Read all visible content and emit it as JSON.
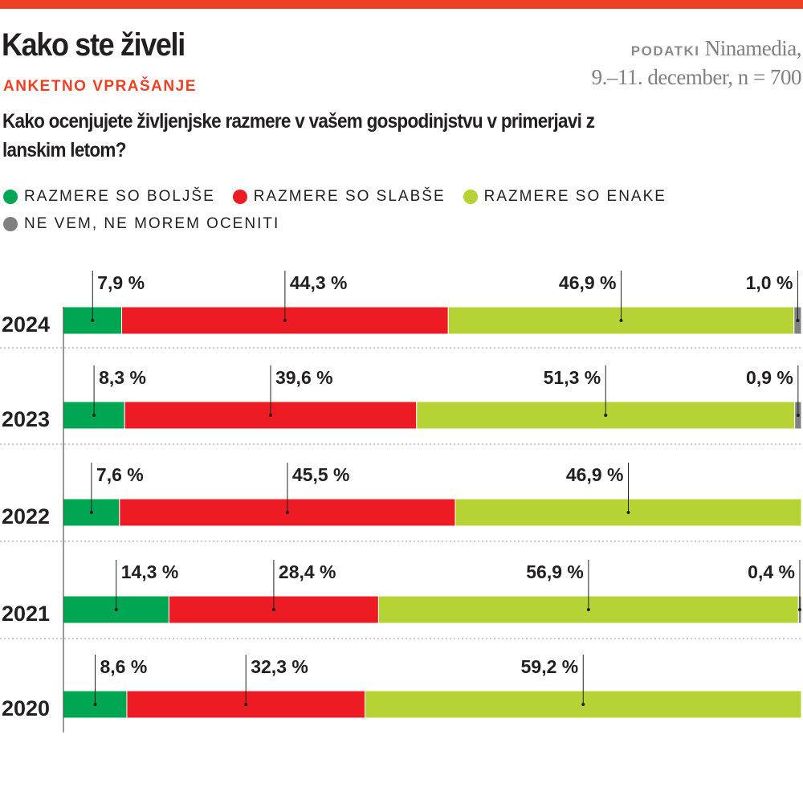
{
  "header": {
    "title": "Kako ste živeli",
    "source_label": "PODATKI",
    "source_line1": "Ninamedia,",
    "source_line2": "9.–11. december, n = 700",
    "kicker": "ANKETNO VPRAŠANJE",
    "question": "Kako ocenjujete življenjske razmere v vašem gospodinjstvu v primerjavi z lanskim letom?"
  },
  "colors": {
    "accent": "#ee4123",
    "better": "#00a651",
    "worse": "#ed1c24",
    "same": "#b5d334",
    "dontknow": "#808080"
  },
  "chart_data": {
    "type": "bar",
    "orientation": "horizontal-stacked-100",
    "categories": [
      "2024",
      "2023",
      "2022",
      "2021",
      "2020"
    ],
    "series": [
      {
        "name": "RAZMERE SO BOLJŠE",
        "color": "#00a651",
        "values": [
          7.9,
          8.3,
          7.6,
          14.3,
          8.6
        ],
        "labels": [
          "7,9 %",
          "8,3 %",
          "7,6 %",
          "14,3 %",
          "8,6 %"
        ]
      },
      {
        "name": "RAZMERE SO SLABŠE",
        "color": "#ed1c24",
        "values": [
          44.3,
          39.6,
          45.5,
          28.4,
          32.3
        ],
        "labels": [
          "44,3 %",
          "39,6 %",
          "45,5 %",
          "28,4 %",
          "32,3 %"
        ]
      },
      {
        "name": "RAZMERE SO ENAKE",
        "color": "#b5d334",
        "values": [
          46.9,
          51.3,
          46.9,
          56.9,
          59.2
        ],
        "labels": [
          "46,9 %",
          "51,3 %",
          "46,9 %",
          "56,9 %",
          "59,2 %"
        ]
      },
      {
        "name": "NE VEM, NE MOREM OCENITI",
        "color": "#808080",
        "values": [
          1.0,
          0.9,
          null,
          0.4,
          null
        ],
        "labels": [
          "1,0 %",
          "0,9 %",
          null,
          "0,4 %",
          null
        ]
      }
    ]
  }
}
